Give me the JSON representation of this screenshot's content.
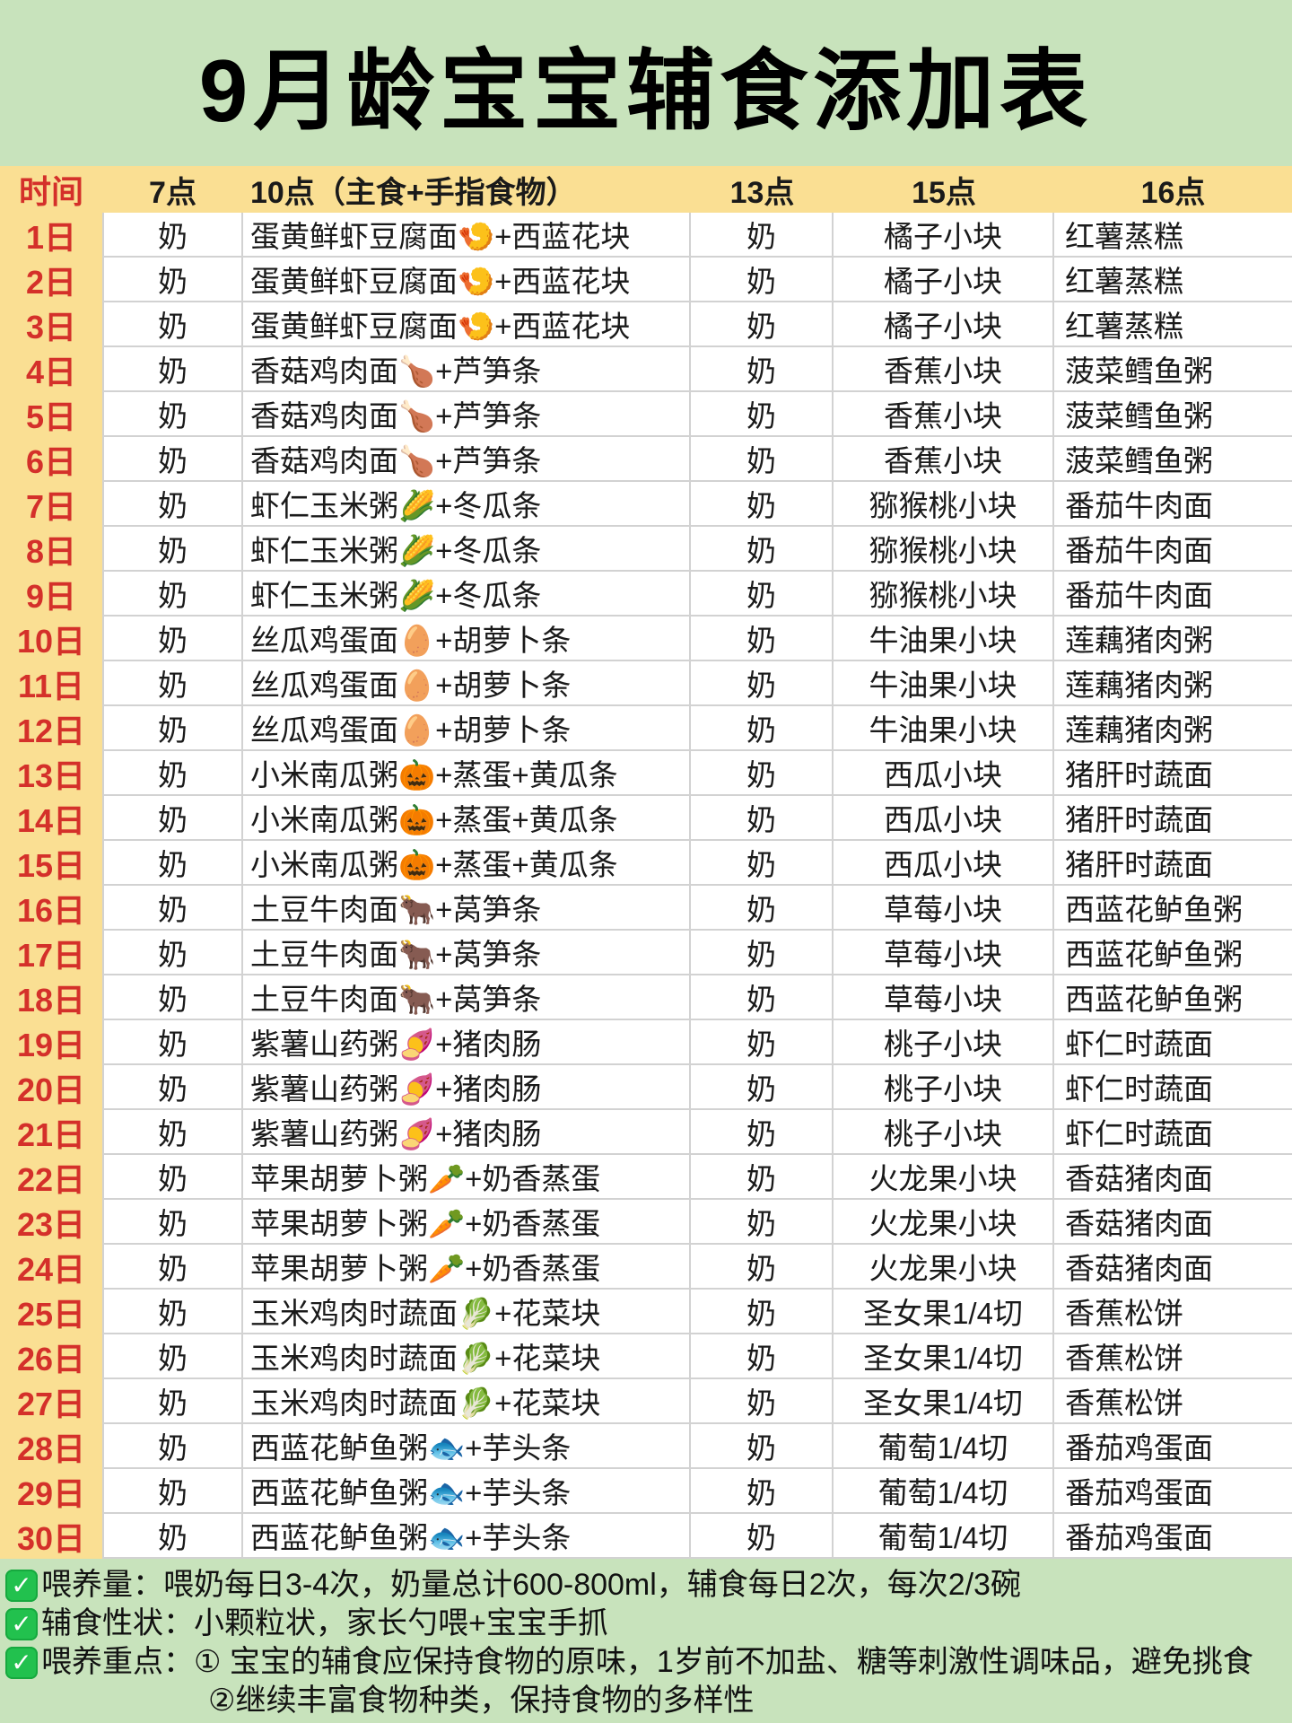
{
  "title": "9月龄宝宝辅食添加表",
  "colors": {
    "page_background": "#C8E3BC",
    "band_yellow": "#FADF93",
    "day_red": "#D4302A",
    "check_green": "#22C14E"
  },
  "table": {
    "columns": [
      "时间",
      "7点",
      "10点（主食+手指食物）",
      "13点",
      "15点",
      "16点"
    ],
    "rows": [
      [
        "1日",
        "奶",
        "蛋黄鲜虾豆腐面🍤+西蓝花块",
        "奶",
        "橘子小块",
        "红薯蒸糕"
      ],
      [
        "2日",
        "奶",
        "蛋黄鲜虾豆腐面🍤+西蓝花块",
        "奶",
        "橘子小块",
        "红薯蒸糕"
      ],
      [
        "3日",
        "奶",
        "蛋黄鲜虾豆腐面🍤+西蓝花块",
        "奶",
        "橘子小块",
        "红薯蒸糕"
      ],
      [
        "4日",
        "奶",
        "香菇鸡肉面🍗+芦笋条",
        "奶",
        "香蕉小块",
        "菠菜鳕鱼粥"
      ],
      [
        "5日",
        "奶",
        "香菇鸡肉面🍗+芦笋条",
        "奶",
        "香蕉小块",
        "菠菜鳕鱼粥"
      ],
      [
        "6日",
        "奶",
        "香菇鸡肉面🍗+芦笋条",
        "奶",
        "香蕉小块",
        "菠菜鳕鱼粥"
      ],
      [
        "7日",
        "奶",
        "虾仁玉米粥🌽+冬瓜条",
        "奶",
        "猕猴桃小块",
        "番茄牛肉面"
      ],
      [
        "8日",
        "奶",
        "虾仁玉米粥🌽+冬瓜条",
        "奶",
        "猕猴桃小块",
        "番茄牛肉面"
      ],
      [
        "9日",
        "奶",
        "虾仁玉米粥🌽+冬瓜条",
        "奶",
        "猕猴桃小块",
        "番茄牛肉面"
      ],
      [
        "10日",
        "奶",
        "丝瓜鸡蛋面🥚+胡萝卜条",
        "奶",
        "牛油果小块",
        "莲藕猪肉粥"
      ],
      [
        "11日",
        "奶",
        "丝瓜鸡蛋面🥚+胡萝卜条",
        "奶",
        "牛油果小块",
        "莲藕猪肉粥"
      ],
      [
        "12日",
        "奶",
        "丝瓜鸡蛋面🥚+胡萝卜条",
        "奶",
        "牛油果小块",
        "莲藕猪肉粥"
      ],
      [
        "13日",
        "奶",
        "小米南瓜粥🎃+蒸蛋+黄瓜条",
        "奶",
        "西瓜小块",
        "猪肝时蔬面"
      ],
      [
        "14日",
        "奶",
        "小米南瓜粥🎃+蒸蛋+黄瓜条",
        "奶",
        "西瓜小块",
        "猪肝时蔬面"
      ],
      [
        "15日",
        "奶",
        "小米南瓜粥🎃+蒸蛋+黄瓜条",
        "奶",
        "西瓜小块",
        "猪肝时蔬面"
      ],
      [
        "16日",
        "奶",
        "土豆牛肉面🐂+莴笋条",
        "奶",
        "草莓小块",
        "西蓝花鲈鱼粥"
      ],
      [
        "17日",
        "奶",
        "土豆牛肉面🐂+莴笋条",
        "奶",
        "草莓小块",
        "西蓝花鲈鱼粥"
      ],
      [
        "18日",
        "奶",
        "土豆牛肉面🐂+莴笋条",
        "奶",
        "草莓小块",
        "西蓝花鲈鱼粥"
      ],
      [
        "19日",
        "奶",
        "紫薯山药粥🍠+猪肉肠",
        "奶",
        "桃子小块",
        "虾仁时蔬面"
      ],
      [
        "20日",
        "奶",
        "紫薯山药粥🍠+猪肉肠",
        "奶",
        "桃子小块",
        "虾仁时蔬面"
      ],
      [
        "21日",
        "奶",
        "紫薯山药粥🍠+猪肉肠",
        "奶",
        "桃子小块",
        "虾仁时蔬面"
      ],
      [
        "22日",
        "奶",
        "苹果胡萝卜粥🥕+奶香蒸蛋",
        "奶",
        "火龙果小块",
        "香菇猪肉面"
      ],
      [
        "23日",
        "奶",
        "苹果胡萝卜粥🥕+奶香蒸蛋",
        "奶",
        "火龙果小块",
        "香菇猪肉面"
      ],
      [
        "24日",
        "奶",
        "苹果胡萝卜粥🥕+奶香蒸蛋",
        "奶",
        "火龙果小块",
        "香菇猪肉面"
      ],
      [
        "25日",
        "奶",
        "玉米鸡肉时蔬面🥬+花菜块",
        "奶",
        "圣女果1/4切",
        "香蕉松饼"
      ],
      [
        "26日",
        "奶",
        "玉米鸡肉时蔬面🥬+花菜块",
        "奶",
        "圣女果1/4切",
        "香蕉松饼"
      ],
      [
        "27日",
        "奶",
        "玉米鸡肉时蔬面🥬+花菜块",
        "奶",
        "圣女果1/4切",
        "香蕉松饼"
      ],
      [
        "28日",
        "奶",
        "西蓝花鲈鱼粥🐟+芋头条",
        "奶",
        "葡萄1/4切",
        "番茄鸡蛋面"
      ],
      [
        "29日",
        "奶",
        "西蓝花鲈鱼粥🐟+芋头条",
        "奶",
        "葡萄1/4切",
        "番茄鸡蛋面"
      ],
      [
        "30日",
        "奶",
        "西蓝花鲈鱼粥🐟+芋头条",
        "奶",
        "葡萄1/4切",
        "番茄鸡蛋面"
      ]
    ]
  },
  "notes": [
    {
      "icon": "check",
      "text": "喂养量：喂奶每日3-4次，奶量总计600-800ml，辅食每日2次，每次2/3碗"
    },
    {
      "icon": "check",
      "text": "辅食性状：小颗粒状，家长勺喂+宝宝手抓"
    },
    {
      "icon": "check",
      "text": "喂养重点：① 宝宝的辅食应保持食物的原味，1岁前不加盐、糖等刺激性调味品，避免挑食"
    },
    {
      "icon": "none",
      "text": "②继续丰富食物种类，保持食物的多样性"
    }
  ]
}
